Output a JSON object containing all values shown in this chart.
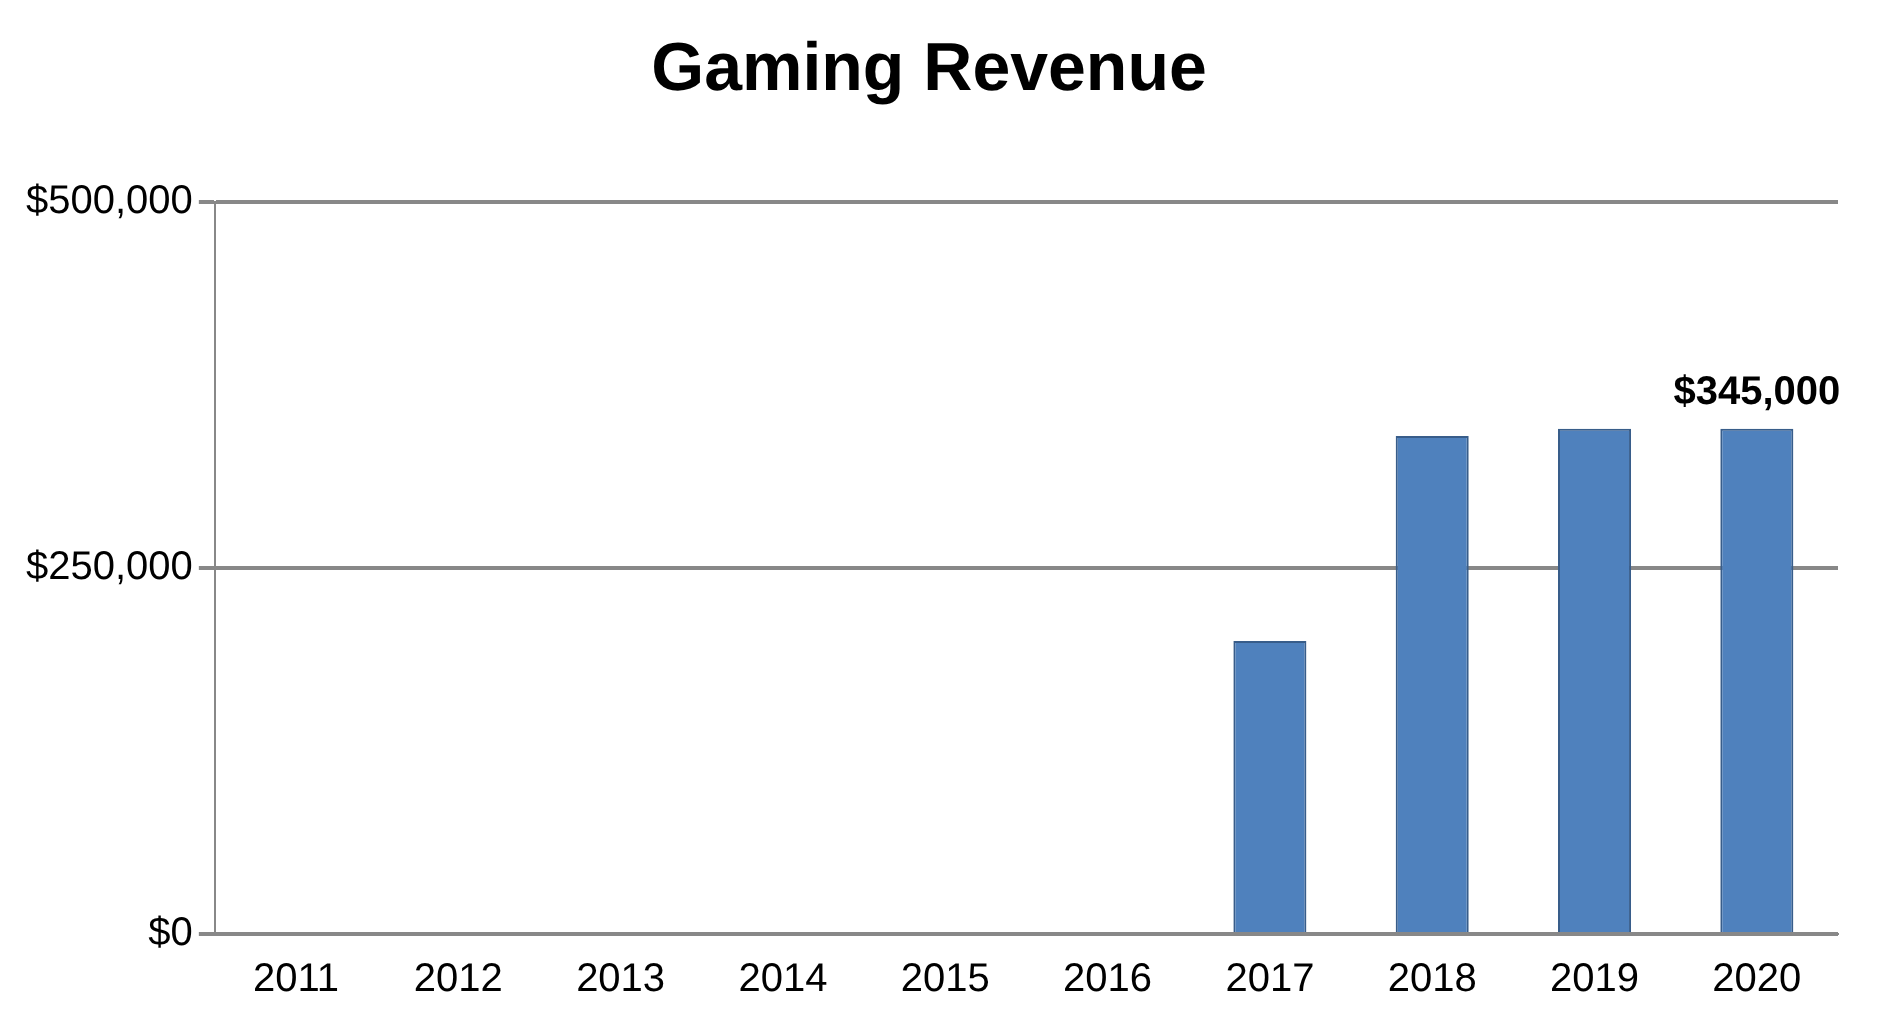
{
  "chart_data": {
    "type": "bar",
    "title": "Gaming Revenue",
    "categories": [
      "2011",
      "2012",
      "2013",
      "2014",
      "2015",
      "2016",
      "2017",
      "2018",
      "2019",
      "2020"
    ],
    "values": [
      0,
      0,
      0,
      0,
      0,
      0,
      200000,
      340000,
      345000,
      345000
    ],
    "value_labels": [
      null,
      null,
      null,
      null,
      null,
      null,
      null,
      null,
      null,
      "$345,000"
    ],
    "color": "#4f81bd",
    "ylim": [
      0,
      500000
    ],
    "yticks": [
      {
        "value": 0,
        "label": "$0"
      },
      {
        "value": 250000,
        "label": "$250,000"
      },
      {
        "value": 500000,
        "label": "$500,000"
      }
    ],
    "grid": "y",
    "legend": false
  }
}
